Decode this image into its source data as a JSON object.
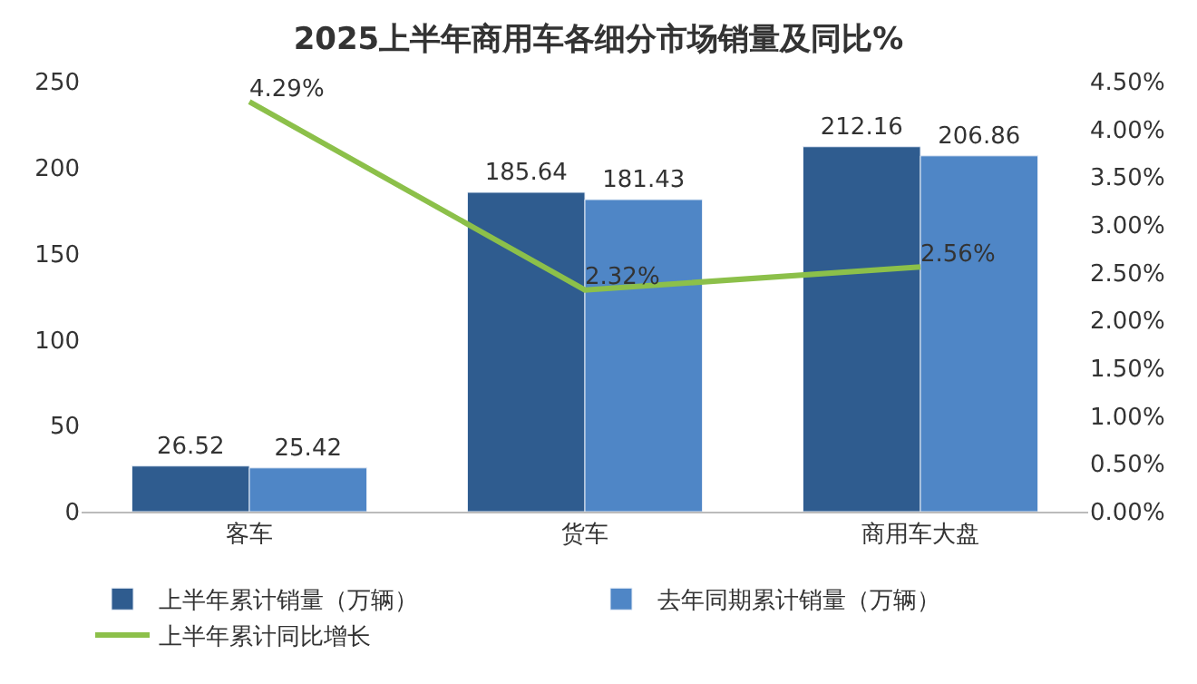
{
  "chart_data": {
    "type": "bar",
    "title": "2025上半年商用车各细分市场销量及同比%",
    "categories": [
      "客车",
      "货车",
      "商用车大盘"
    ],
    "series": [
      {
        "name": "上半年累计销量（万辆）",
        "color": "#2f5c8f",
        "values": [
          26.52,
          185.64,
          212.16
        ]
      },
      {
        "name": "去年同期累计销量（万辆）",
        "color": "#4f86c6",
        "values": [
          25.42,
          181.43,
          206.86
        ]
      },
      {
        "name": "上半年累计同比增长",
        "type": "line",
        "axis": "y2",
        "color": "#8cc04a",
        "values": [
          4.29,
          2.32,
          2.56
        ],
        "value_labels": [
          "4.29%",
          "2.32%",
          "2.56%"
        ]
      }
    ],
    "data_labels": true,
    "ylim": [
      0,
      250
    ],
    "yticks": [
      0,
      50,
      100,
      150,
      200,
      250
    ],
    "y2lim": [
      0,
      4.5
    ],
    "y2ticks": [
      {
        "value": 0,
        "label": "0.00%"
      },
      {
        "value": 0.5,
        "label": "0.50%"
      },
      {
        "value": 1,
        "label": "1.00%"
      },
      {
        "value": 1.5,
        "label": "1.50%"
      },
      {
        "value": 2,
        "label": "2.00%"
      },
      {
        "value": 2.5,
        "label": "2.50%"
      },
      {
        "value": 3,
        "label": "3.00%"
      },
      {
        "value": 3.5,
        "label": "3.50%"
      },
      {
        "value": 4,
        "label": "4.00%"
      },
      {
        "value": 4.5,
        "label": "4.50%"
      }
    ],
    "legend": "bottom",
    "marker": "none",
    "line_style": "solid"
  }
}
